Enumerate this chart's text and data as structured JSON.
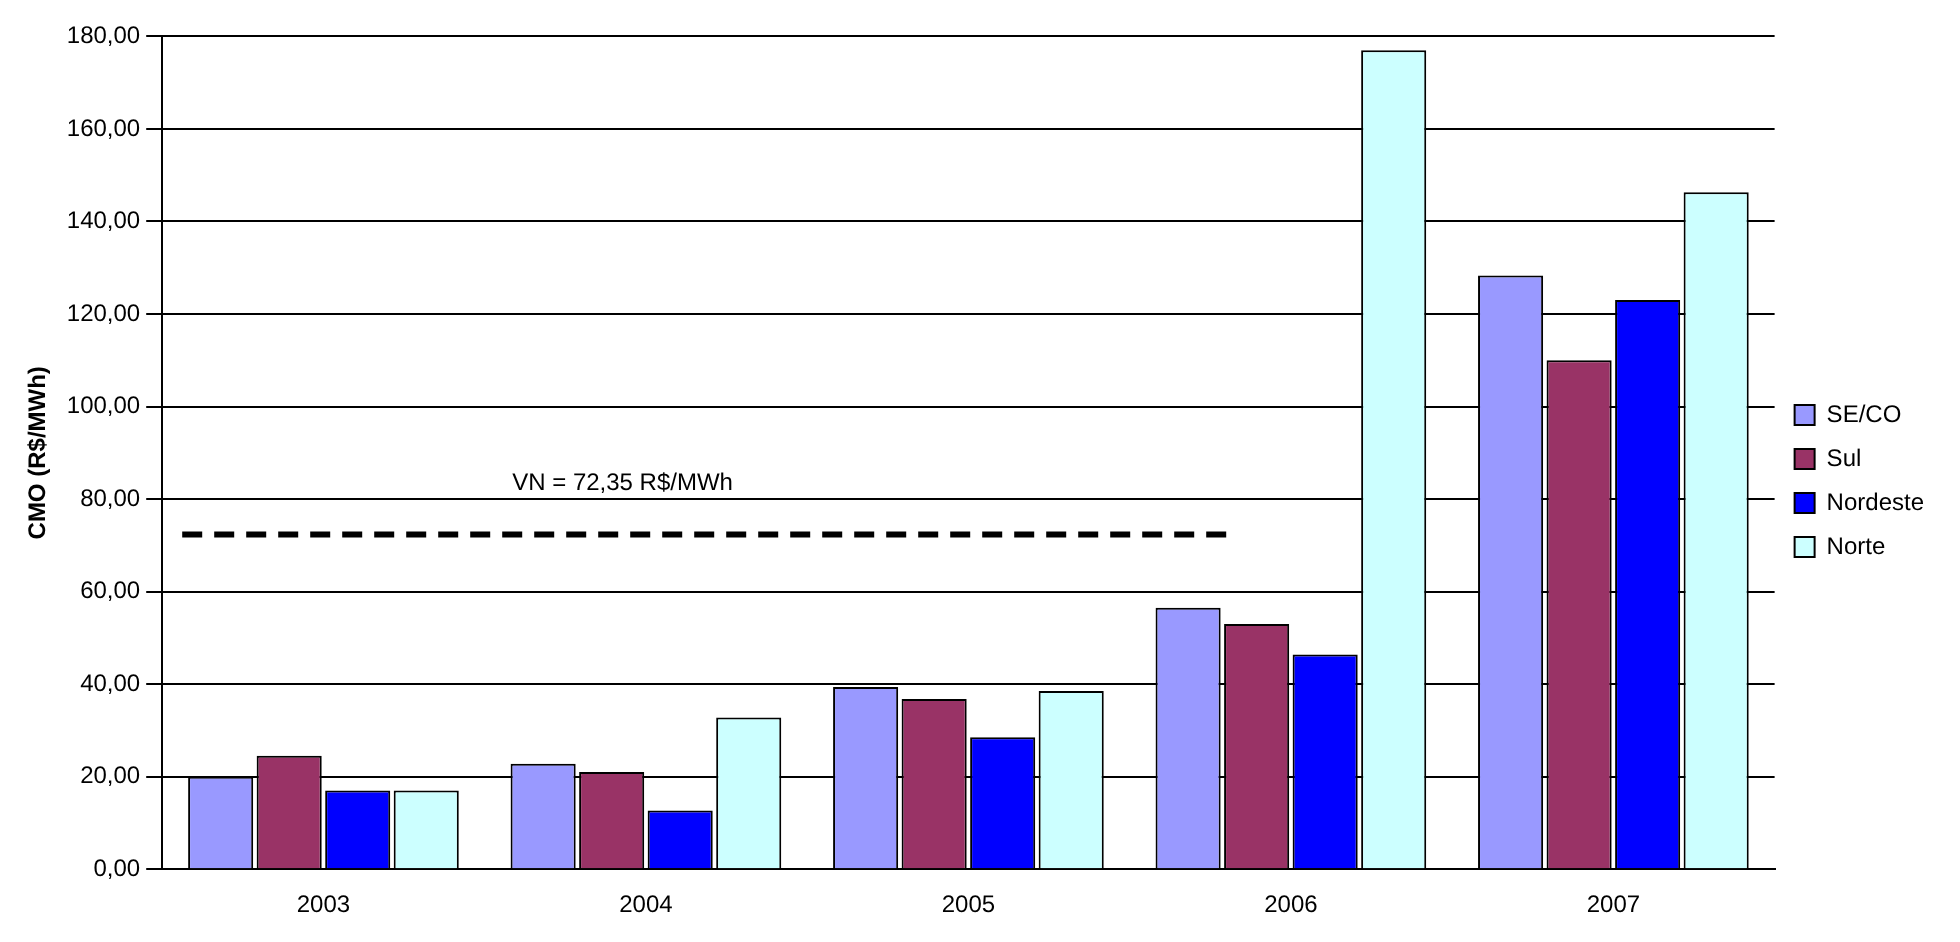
{
  "chart_data": {
    "type": "bar",
    "ylabel": "CMO (R$/MWh)",
    "categories": [
      "2003",
      "2004",
      "2005",
      "2006",
      "2007"
    ],
    "series": [
      {
        "name": "SE/CO",
        "color": "#9999ff",
        "values": [
          20,
          22.8,
          39.4,
          56.5,
          128.3
        ]
      },
      {
        "name": "Sul",
        "color": "#993366",
        "values": [
          24.5,
          21,
          36.8,
          53,
          110
        ]
      },
      {
        "name": "Nordeste",
        "color": "#0000ff",
        "values": [
          17,
          12.7,
          28.5,
          46.4,
          123
        ]
      },
      {
        "name": "Norte",
        "color": "#ccffff",
        "values": [
          17,
          32.8,
          38.5,
          177,
          146.3
        ]
      }
    ],
    "ylim": [
      0,
      180
    ],
    "yticks": [
      {
        "value": 0,
        "label": "0,00"
      },
      {
        "value": 20,
        "label": "20,00"
      },
      {
        "value": 40,
        "label": "40,00"
      },
      {
        "value": 60,
        "label": "60,00"
      },
      {
        "value": 80,
        "label": "80,00"
      },
      {
        "value": 100,
        "label": "100,00"
      },
      {
        "value": 120,
        "label": "120,00"
      },
      {
        "value": 140,
        "label": "140,00"
      },
      {
        "value": 160,
        "label": "160,00"
      },
      {
        "value": 180,
        "label": "180,00"
      }
    ],
    "ref_lines": [
      {
        "axis": "y",
        "value": 72.35,
        "label": "VN = 72,35 R$/MWh",
        "color": "#000000",
        "line_style": "dashed"
      }
    ],
    "grid": "y",
    "legend": "right"
  }
}
